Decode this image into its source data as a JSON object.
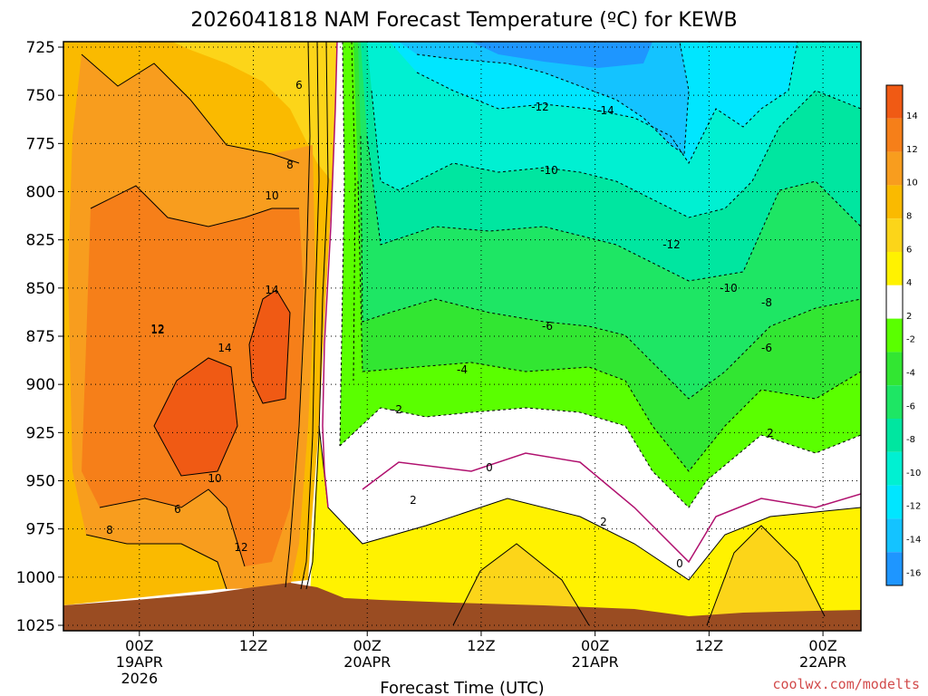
{
  "chart_data": {
    "type": "heatmap",
    "title": "2026041818 NAM Forecast Temperature (ºC) for KEWB",
    "xlabel": "Forecast Time (UTC)",
    "ylabel": "",
    "y_ticks": [
      "725",
      "750",
      "775",
      "800",
      "825",
      "850",
      "875",
      "900",
      "925",
      "950",
      "975",
      "1000",
      "1025"
    ],
    "y_range": [
      725,
      1025
    ],
    "x_range_hours": [
      -8,
      76
    ],
    "x_ticks": [
      {
        "hour": 0,
        "label": "00Z",
        "sub1": "19APR",
        "sub2": "2026"
      },
      {
        "hour": 12,
        "label": "12Z",
        "sub1": "",
        "sub2": ""
      },
      {
        "hour": 24,
        "label": "00Z",
        "sub1": "20APR",
        "sub2": ""
      },
      {
        "hour": 36,
        "label": "12Z",
        "sub1": "",
        "sub2": ""
      },
      {
        "hour": 48,
        "label": "00Z",
        "sub1": "21APR",
        "sub2": ""
      },
      {
        "hour": 60,
        "label": "12Z",
        "sub1": "",
        "sub2": ""
      },
      {
        "hour": 72,
        "label": "00Z",
        "sub1": "22APR",
        "sub2": ""
      }
    ],
    "colorbar": {
      "labels": [
        "14",
        "12",
        "10",
        "8",
        "6",
        "4",
        "2",
        "-2",
        "-4",
        "-6",
        "-8",
        "-10",
        "-12",
        "-14",
        "-16"
      ],
      "colors": [
        "#f05a14",
        "#f67f19",
        "#f89d1e",
        "#faba00",
        "#fcd519",
        "#fff200",
        "#ffffff",
        "#5aff00",
        "#32e632",
        "#1ee664",
        "#00e6a0",
        "#00f0d2",
        "#00e6ff",
        "#14c3ff",
        "#1e96ff"
      ]
    },
    "contour_labels": [
      "6",
      "8",
      "10",
      "14",
      "12",
      "14",
      "12",
      "10",
      "6",
      "8",
      "12",
      "-12",
      "-14",
      "-10",
      "-12",
      "-10",
      "-8",
      "-6",
      "-6",
      "-4",
      "-2",
      "0",
      "2",
      "2",
      "0",
      "2"
    ],
    "annotation": "coolwx.com/modelts"
  }
}
